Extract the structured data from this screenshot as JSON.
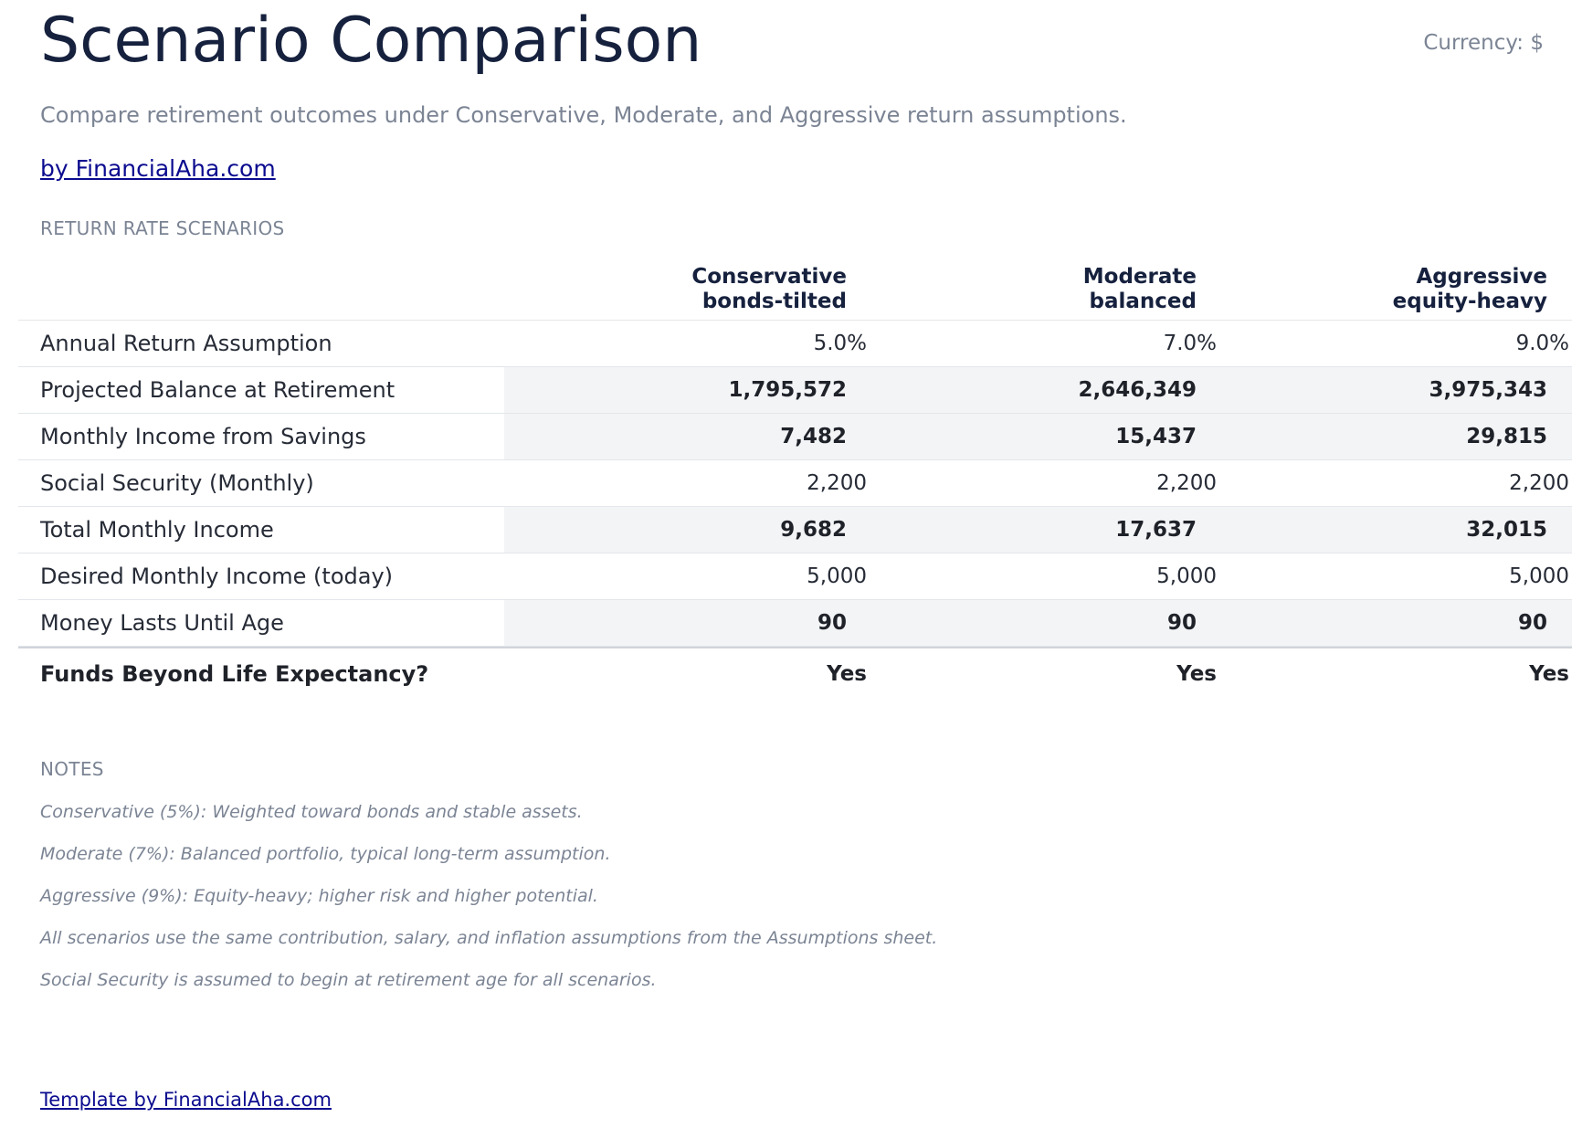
{
  "header": {
    "title": "Scenario Comparison",
    "currency": "Currency: $",
    "subtitle": "Compare retirement outcomes under Conservative, Moderate, and Aggressive return assumptions.",
    "byline": "by FinancialAha.com"
  },
  "table": {
    "section_label": "RETURN RATE SCENARIOS",
    "columns": [
      {
        "name": "Conservative",
        "sub": "bonds-tilted"
      },
      {
        "name": "Moderate",
        "sub": "balanced"
      },
      {
        "name": "Aggressive",
        "sub": "equity-heavy"
      }
    ],
    "rows": [
      {
        "label": "Annual Return Assumption",
        "values": [
          "5.0%",
          "7.0%",
          "9.0%"
        ]
      },
      {
        "label": "Projected Balance at Retirement",
        "values": [
          "1,795,572",
          "2,646,349",
          "3,975,343"
        ]
      },
      {
        "label": "Monthly Income from Savings",
        "values": [
          "7,482",
          "15,437",
          "29,815"
        ]
      },
      {
        "label": "Social Security (Monthly)",
        "values": [
          "2,200",
          "2,200",
          "2,200"
        ]
      },
      {
        "label": "Total Monthly Income",
        "values": [
          "9,682",
          "17,637",
          "32,015"
        ]
      },
      {
        "label": "Desired Monthly Income (today)",
        "values": [
          "5,000",
          "5,000",
          "5,000"
        ]
      },
      {
        "label": "Money Lasts Until Age",
        "values": [
          "90",
          "90",
          "90"
        ]
      },
      {
        "label": "Funds Beyond Life Expectancy?",
        "values": [
          "Yes",
          "Yes",
          "Yes"
        ]
      }
    ]
  },
  "notes": {
    "label": "NOTES",
    "items": [
      "Conservative (5%): Weighted toward bonds and stable assets.",
      "Moderate (7%): Balanced portfolio, typical long-term assumption.",
      "Aggressive (9%): Equity-heavy; higher risk and higher potential.",
      "All scenarios use the same contribution, salary, and inflation assumptions from the Assumptions sheet.",
      "Social Security is assumed to begin at retirement age for all scenarios."
    ]
  },
  "footer": {
    "link": "Template by FinancialAha.com"
  }
}
